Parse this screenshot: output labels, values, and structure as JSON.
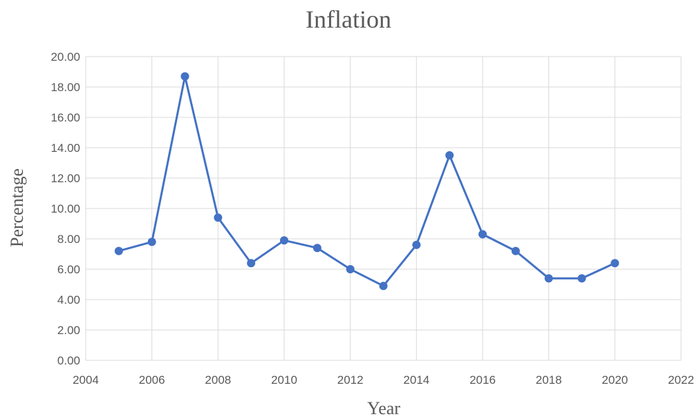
{
  "chart_data": {
    "type": "scatter",
    "title": "Inflation",
    "xlabel": "Year",
    "ylabel": "Percentage",
    "xlim": [
      2004,
      2022
    ],
    "ylim": [
      0,
      20
    ],
    "xticks": [
      "2004",
      "2006",
      "2008",
      "2010",
      "2012",
      "2014",
      "2016",
      "2018",
      "2020",
      "2022"
    ],
    "yticks": [
      "0.00",
      "2.00",
      "4.00",
      "6.00",
      "8.00",
      "10.00",
      "12.00",
      "14.00",
      "16.00",
      "18.00",
      "20.00"
    ],
    "grid": true,
    "markers": true,
    "lines": true,
    "color": "#4472C4",
    "series": [
      {
        "x": [
          2005,
          2006,
          2007,
          2008,
          2009,
          2010,
          2011,
          2012,
          2013,
          2014,
          2015,
          2016,
          2017,
          2018,
          2019,
          2020
        ],
        "y": [
          7.2,
          7.8,
          18.7,
          9.4,
          6.4,
          7.9,
          7.4,
          6.0,
          4.9,
          7.6,
          13.5,
          8.3,
          7.2,
          5.4,
          5.4,
          6.4
        ]
      }
    ]
  }
}
